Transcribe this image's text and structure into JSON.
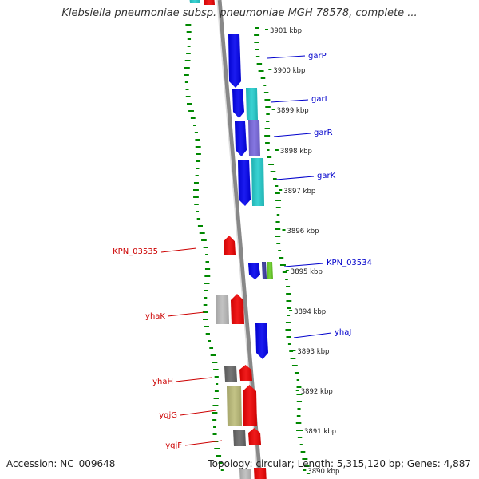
{
  "map": {
    "title": "Klebsiella pneumoniae subsp. pneumoniae MGH 78578, complete ...",
    "accession": "Accession: NC_009648",
    "topology": "Topology: circular; Length: 5,315,120 bp; Genes: 4,887"
  },
  "ticks": [
    {
      "label": "3901 kbp",
      "kbp": 3901
    },
    {
      "label": "3900 kbp",
      "kbp": 3900
    },
    {
      "label": "3899 kbp",
      "kbp": 3899
    },
    {
      "label": "3898 kbp",
      "kbp": 3898
    },
    {
      "label": "3897 kbp",
      "kbp": 3897
    },
    {
      "label": "3896 kbp",
      "kbp": 3896
    },
    {
      "label": "3895 kbp",
      "kbp": 3895
    },
    {
      "label": "3894 kbp",
      "kbp": 3894
    },
    {
      "label": "3893 kbp",
      "kbp": 3893
    },
    {
      "label": "3892 kbp",
      "kbp": 3892
    },
    {
      "label": "3891 kbp",
      "kbp": 3891
    },
    {
      "label": "3890 kbp",
      "kbp": 3890
    }
  ],
  "gene_labels": [
    {
      "name": "garP",
      "strand": "forward",
      "color": "#0000cc"
    },
    {
      "name": "garL",
      "strand": "forward",
      "color": "#0000cc"
    },
    {
      "name": "garR",
      "strand": "forward",
      "color": "#0000cc"
    },
    {
      "name": "garK",
      "strand": "forward",
      "color": "#0000cc"
    },
    {
      "name": "KPN_03534",
      "strand": "forward",
      "color": "#0000cc"
    },
    {
      "name": "yhaJ",
      "strand": "forward",
      "color": "#0000cc"
    },
    {
      "name": "KPN_03535",
      "strand": "reverse",
      "color": "#cc0000"
    },
    {
      "name": "yhaK",
      "strand": "reverse",
      "color": "#cc0000"
    },
    {
      "name": "yhaH",
      "strand": "reverse",
      "color": "#cc0000"
    },
    {
      "name": "yqjG",
      "strand": "reverse",
      "color": "#cc0000"
    },
    {
      "name": "yqjF",
      "strand": "reverse",
      "color": "#cc0000"
    }
  ],
  "colors": {
    "forward_gene": "#0000ee",
    "reverse_gene": "#ee0000",
    "cog_cyan": "#22cccc",
    "cog_purple": "#7766dd",
    "cog_gray": "#bbbbbb",
    "cog_dark": "#666666",
    "cog_olive": "#bbbb77",
    "gc_dots": "#008800",
    "backbone": "#888888"
  }
}
